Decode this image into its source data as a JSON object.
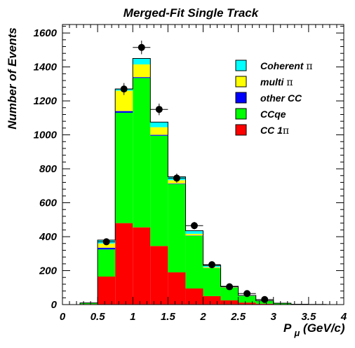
{
  "chart_data": {
    "type": "bar",
    "stacked": true,
    "title": "Merged-Fit Single Track",
    "xlabel": "P",
    "xlabel_sub": "μ",
    "xlabel_unit": "(GeV/c)",
    "ylabel": "Number of Events",
    "xlim": [
      0,
      4
    ],
    "ylim": [
      0,
      1650
    ],
    "xticks": [
      "0",
      "0.5",
      "1",
      "1.5",
      "2",
      "2.5",
      "3",
      "3.5",
      "4"
    ],
    "yticks": [
      "0",
      "200",
      "400",
      "600",
      "800",
      "1000",
      "1200",
      "1400",
      "1600"
    ],
    "legend_position": "top-right",
    "bin_edges": [
      0.25,
      0.5,
      0.75,
      1.0,
      1.25,
      1.5,
      1.75,
      2.0,
      2.25,
      2.5,
      2.75,
      3.0,
      3.25,
      3.5,
      3.75,
      4.0
    ],
    "series": [
      {
        "name": "CC 1π",
        "label_text": "CC 1",
        "label_sym": "π",
        "color": "#ff0000",
        "values": [
          3,
          165,
          480,
          455,
          345,
          190,
          95,
          50,
          25,
          12,
          5,
          2,
          0,
          0,
          0
        ]
      },
      {
        "name": "CCqe",
        "label_text": "CCqe",
        "label_sym": "",
        "color": "#00ff00",
        "values": [
          6,
          160,
          650,
          880,
          650,
          520,
          310,
          165,
          75,
          38,
          17,
          6,
          2,
          1,
          0
        ]
      },
      {
        "name": "other CC",
        "label_text": "other CC",
        "label_sym": "",
        "color": "#0000ff",
        "values": [
          0,
          10,
          10,
          5,
          5,
          3,
          2,
          1,
          1,
          0,
          0,
          0,
          0,
          0,
          0
        ]
      },
      {
        "name": "multi π",
        "label_text": "multi ",
        "label_sym": "π",
        "color": "#ffff00",
        "values": [
          0,
          25,
          120,
          75,
          45,
          20,
          10,
          5,
          2,
          1,
          0,
          0,
          0,
          0,
          0
        ]
      },
      {
        "name": "Coherent π",
        "label_text": "Coherent ",
        "label_sym": "π",
        "color": "#00ffff",
        "values": [
          1,
          20,
          10,
          35,
          30,
          20,
          18,
          10,
          5,
          3,
          1,
          0,
          0,
          0,
          0
        ]
      }
    ],
    "data_points": {
      "x": [
        0.625,
        0.875,
        1.125,
        1.375,
        1.625,
        1.875,
        2.125,
        2.375,
        2.625,
        2.875
      ],
      "y": [
        370,
        1270,
        1515,
        1150,
        745,
        465,
        235,
        105,
        65,
        30
      ],
      "yerr": [
        20,
        35,
        40,
        34,
        27,
        22,
        15,
        10,
        8,
        6
      ]
    }
  }
}
